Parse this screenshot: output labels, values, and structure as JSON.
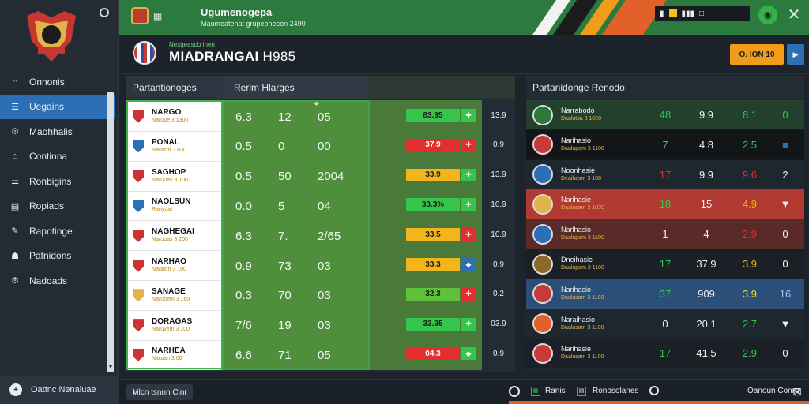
{
  "header": {
    "title": "Ugumenogepa",
    "subtitle": "Maumeatenat grupeonecon 2490",
    "right_icons": [
      "▮",
      "■",
      "▮▮▮",
      "□"
    ]
  },
  "subheader": {
    "club_small": "Nexqeasdo inen",
    "club_title": "MIADRANGAI",
    "club_title_extra": "H985",
    "orange_btn": "O. ION 10",
    "blue_btn": "▶"
  },
  "sidebar": {
    "items": [
      {
        "label": "Onnonis",
        "icon": "home-icon"
      },
      {
        "label": "Uegains",
        "icon": "list-icon"
      },
      {
        "label": "Maohhalis",
        "icon": "gear-icon"
      },
      {
        "label": "Continna",
        "icon": "home-icon"
      },
      {
        "label": "Ronbigins",
        "icon": "list-icon"
      },
      {
        "label": "Ropiads",
        "icon": "chart-icon"
      },
      {
        "label": "Rapotinge",
        "icon": "wrench-icon"
      },
      {
        "label": "Patnidons",
        "icon": "user-icon"
      },
      {
        "label": "Nadoads",
        "icon": "gear-icon"
      }
    ],
    "footer_label": "Oattnc Nenaiuae"
  },
  "table": {
    "head_a": "Partantionoges",
    "head_b": "Rerim Hlarges",
    "rows": [
      {
        "team": "NARGO",
        "meta": "Naruue 3 1300",
        "s1": "6.3",
        "s2": "12",
        "s3": "05",
        "pct": "83.95",
        "pct_color": "#34c54a",
        "mini_color": "#34c54a",
        "mini": "✚",
        "ext": "13.9",
        "shield": "#c33"
      },
      {
        "team": "PONAL",
        "meta": "Narasm 3 030",
        "s1": "0.5",
        "s2": "0",
        "s3": "00",
        "pct": "37.9",
        "pct_color": "#e42e2e",
        "mini_color": "#e42e2e",
        "mini": "✚",
        "ext": "0.9",
        "shield": "#2d6fb5"
      },
      {
        "team": "SAGHOP",
        "meta": "Naruuas 3 100",
        "s1": "0.5",
        "s2": "50",
        "s3": "2004",
        "pct": "33.9",
        "pct_color": "#f2b51b",
        "mini_color": "#34c54a",
        "mini": "✚",
        "ext": "13.9",
        "shield": "#c33"
      },
      {
        "team": "NAOLSUN",
        "meta": "Ranyoat",
        "s1": "0.0",
        "s2": "5",
        "s3": "04",
        "pct": "33.3%",
        "pct_color": "#34c54a",
        "mini_color": "#34c54a",
        "mini": "✚",
        "ext": "10.9",
        "shield": "#2d6fb5"
      },
      {
        "team": "NAGHEGAI",
        "meta": "Naruuas 3 200",
        "s1": "6.3",
        "s2": "7.",
        "s3": "2/65",
        "pct": "33.5",
        "pct_color": "#f2b51b",
        "mini_color": "#e42e2e",
        "mini": "✚",
        "ext": "10.9",
        "shield": "#c33"
      },
      {
        "team": "NARHAO",
        "meta": "Narasm 3 100",
        "s1": "0.9",
        "s2": "73",
        "s3": "03",
        "pct": "33.3",
        "pct_color": "#f2b51b",
        "mini_color": "#2d6fb5",
        "mini": "◆",
        "ext": "0.9",
        "shield": "#c33"
      },
      {
        "team": "SANAGE",
        "meta": "Naruoem 3 160",
        "s1": "0.3",
        "s2": "70",
        "s3": "03",
        "pct": "32.3",
        "pct_color": "#5fc03a",
        "mini_color": "#e42e2e",
        "mini": "✚",
        "ext": "0.2",
        "shield": "#e2b34a"
      },
      {
        "team": "DORAGAS",
        "meta": "Naruvem 3 100",
        "s1": "7/6",
        "s2": "19",
        "s3": "03",
        "pct": "33.95",
        "pct_color": "#34c54a",
        "mini_color": "#34c54a",
        "mini": "✚",
        "ext": "03.9",
        "shield": "#c33"
      },
      {
        "team": "NARHEA",
        "meta": "Naraan 3 00",
        "s1": "6.6",
        "s2": "71",
        "s3": "05",
        "pct": "04.3",
        "pct_color": "#e42e2e",
        "mini_color": "#34c54a",
        "mini": "◆",
        "ext": "0.9",
        "shield": "#c33"
      }
    ]
  },
  "right_panel": {
    "title": "Partanidonge Renodo",
    "rows": [
      {
        "name": "Narrabodo",
        "meta": "Daalutsa 3 1020",
        "v1": "48",
        "v1c": "#34c54a",
        "v2": "9.9",
        "v3": "8.1",
        "v3c": "#34c54a",
        "v4": "0",
        "v4c": "#34c54a",
        "bg": "#23402d",
        "avatar": "#2c7a3a"
      },
      {
        "name": "Narihasio",
        "meta": "Daalupam 3 1100",
        "v1": "7",
        "v1c": "#34c54a",
        "v2": "4.8",
        "v3": "2.5",
        "v3c": "#34c54a",
        "v4": "■",
        "v4c": "#2d6fb5",
        "bg": "#121619",
        "avatar": "#c83a3a"
      },
      {
        "name": "Noonhasie",
        "meta": "Deaihasm 3 108",
        "v1": "17",
        "v1c": "#e42e2e",
        "v2": "9.9",
        "v3": "9.6",
        "v3c": "#e42e2e",
        "v4": "2",
        "v4c": "#f1f3f4",
        "bg": "#1f272e",
        "avatar": "#2d6fb5"
      },
      {
        "name": "Narihasie",
        "meta": "Daalusam 3 1020",
        "v1": "18",
        "v1c": "#34c54a",
        "v2": "15",
        "v3": "4.9",
        "v3c": "#f2b51b",
        "v4": "▼",
        "v4c": "#f1f3f4",
        "bg": "#b03a32",
        "avatar": "#e2b34a"
      },
      {
        "name": "Narlhasio",
        "meta": "Daalupam 3 1100",
        "v1": "1",
        "v1c": "#f1f3f4",
        "v2": "4",
        "v3": "2.9",
        "v3c": "#e42e2e",
        "v4": "0",
        "v4c": "#f1f3f4",
        "bg": "#5a2a28",
        "avatar": "#2d6fb5"
      },
      {
        "name": "Dneihasie",
        "meta": "Daalupam 3 1100",
        "v1": "17",
        "v1c": "#34c54a",
        "v2": "37.9",
        "v3": "3.9",
        "v3c": "#f2b51b",
        "v4": "0",
        "v4c": "#f1f3f4",
        "bg": "#1a2026",
        "avatar": "#8a6a2a"
      },
      {
        "name": "Narihasio",
        "meta": "Daalusam 3 1100",
        "v1": "37",
        "v1c": "#34c54a",
        "v2": "909",
        "v3": "3.9",
        "v3c": "#f2e21b",
        "v4": "16",
        "v4c": "#9fc5ff",
        "bg": "#2b4f78",
        "avatar": "#c83a3a"
      },
      {
        "name": "Naraihasio",
        "meta": "Daalusam 3 1100",
        "v1": "0",
        "v1c": "#f1f3f4",
        "v2": "20.1",
        "v3": "2.7",
        "v3c": "#34c54a",
        "v4": "▼",
        "v4c": "#f1f3f4",
        "bg": "#1f272e",
        "avatar": "#e2602a"
      },
      {
        "name": "Narihasie",
        "meta": "Daalusam 3 1100",
        "v1": "17",
        "v1c": "#34c54a",
        "v2": "41.5",
        "v3": "2.9",
        "v3c": "#34c54a",
        "v4": "0",
        "v4c": "#f1f3f4",
        "bg": "#1a2026",
        "avatar": "#c83a3a"
      }
    ]
  },
  "footer": {
    "btn": "Mlcn tsnnn Cinr",
    "label1": "Ranis",
    "label2": "Ronosolanes",
    "label3": "Oanoun Conro",
    "close": "⊠"
  }
}
